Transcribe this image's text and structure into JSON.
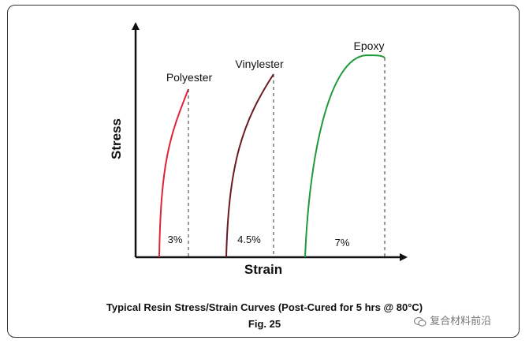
{
  "chart_data": {
    "type": "line",
    "xlabel": "Strain",
    "ylabel": "Stress",
    "grid": false,
    "series": [
      {
        "name": "Polyester",
        "elongation_label": "3%",
        "strain_pct": 3,
        "color": "#e0223a"
      },
      {
        "name": "Vinylester",
        "elongation_label": "4.5%",
        "strain_pct": 4.5,
        "color": "#6b1a24"
      },
      {
        "name": "Epoxy",
        "elongation_label": "7%",
        "strain_pct": 7,
        "color": "#1e9a3c"
      }
    ]
  },
  "caption": {
    "title": "Typical Resin Stress/Strain Curves (Post-Cured for 5 hrs @ 80°C)",
    "figure": "Fig. 25"
  },
  "watermark": {
    "text": "复合材料前沿",
    "icon": "wechat-icon"
  }
}
